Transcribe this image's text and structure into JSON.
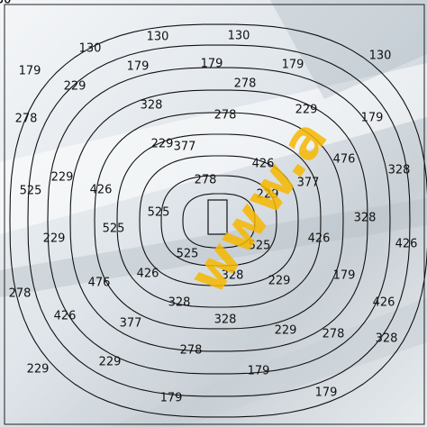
{
  "diagram": {
    "contour_levels": [
      130,
      179,
      229,
      278,
      328,
      377,
      426,
      476,
      525
    ],
    "labels": [
      "130",
      "130",
      "130",
      "130",
      "179",
      "179",
      "179",
      "179",
      "229",
      "278",
      "328",
      "278",
      "229",
      "179",
      "278",
      "229",
      "377",
      "426",
      "476",
      "328",
      "229",
      "525",
      "426",
      "278",
      "229",
      "377",
      "525",
      "328",
      "525",
      "426",
      "426",
      "229",
      "278",
      "525",
      "525",
      "426",
      "328",
      "229",
      "179",
      "476",
      "328",
      "328",
      "426",
      "426",
      "377",
      "229",
      "278",
      "328",
      "278",
      "229",
      "179",
      "229",
      "179",
      "179",
      "130",
      "130",
      "130"
    ],
    "watermark": "www.a",
    "colors": {
      "line": "#111111",
      "label": "#111111",
      "watermark": "#f6b800",
      "background": "#d9dfe4"
    }
  }
}
